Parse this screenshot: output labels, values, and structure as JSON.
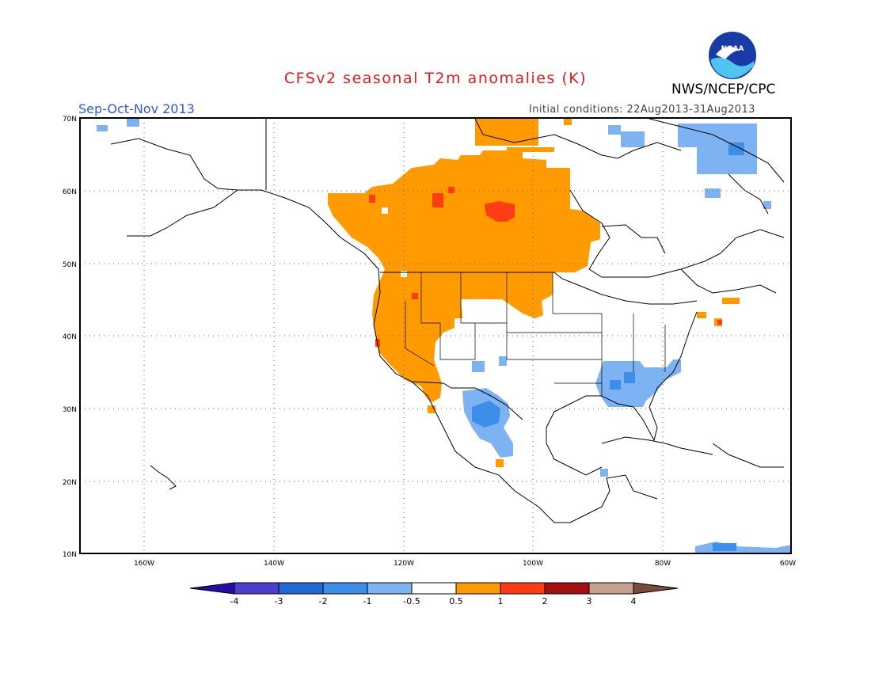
{
  "title": "CFSv2 seasonal T2m anomalies (K)",
  "period": "Sep-Oct-Nov 2013",
  "initial_conditions": "Initial conditions: 22Aug2013-31Aug2013",
  "agency": "NWS/NCEP/CPC",
  "logo_text": "NOAA",
  "map": {
    "lon_range": [
      -172,
      -60
    ],
    "lat_range": [
      10,
      70
    ],
    "lat_labels": [
      "70N",
      "60N",
      "50N",
      "40N",
      "30N",
      "20N",
      "10N"
    ],
    "lon_labels": [
      "160W",
      "140W",
      "120W",
      "100W",
      "80W",
      "60W"
    ]
  },
  "colorbar": {
    "labels": [
      "-4",
      "-3",
      "-2",
      "-1",
      "-0.5",
      "0.5",
      "1",
      "2",
      "3",
      "4"
    ],
    "colors": [
      "#2a0aa8",
      "#4b3fd0",
      "#1f6ad6",
      "#3c8ee8",
      "#7db3f2",
      "#ffffff",
      "#ff9a00",
      "#ff3c14",
      "#a50f0f",
      "#c9a08f",
      "#7a4a3a"
    ]
  },
  "colors": {
    "warm_05_1": "#ff9a00",
    "warm_1_2": "#ff3c14",
    "cool_05_1": "#7db3f2",
    "cool_1_2": "#3c8ee8",
    "title": "#e31a1c",
    "period": "#2d5bd6"
  }
}
